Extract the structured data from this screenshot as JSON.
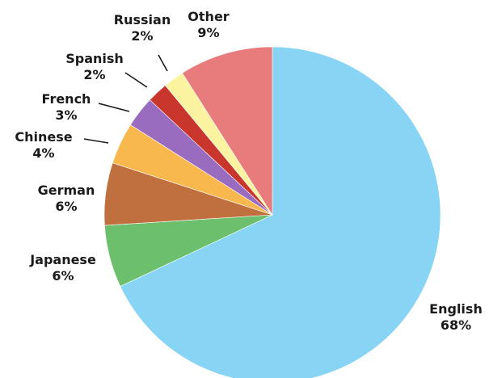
{
  "chart_data": {
    "type": "pie",
    "slices": [
      {
        "label": "English",
        "value": 68,
        "pct_label": "68%",
        "color": "#87d4f5"
      },
      {
        "label": "Japanese",
        "value": 6,
        "pct_label": "6%",
        "color": "#6cbf6c"
      },
      {
        "label": "German",
        "value": 6,
        "pct_label": "6%",
        "color": "#c0703e"
      },
      {
        "label": "Chinese",
        "value": 4,
        "pct_label": "4%",
        "color": "#f8b84e"
      },
      {
        "label": "French",
        "value": 3,
        "pct_label": "3%",
        "color": "#9a6cc0"
      },
      {
        "label": "Spanish",
        "value": 2,
        "pct_label": "2%",
        "color": "#c8362c"
      },
      {
        "label": "Russian",
        "value": 2,
        "pct_label": "2%",
        "color": "#fbf3a0"
      },
      {
        "label": "Other",
        "value": 9,
        "pct_label": "9%",
        "color": "#e87c7c"
      }
    ],
    "start": "12 o'clock",
    "direction": "clockwise",
    "labels": "outside, with leader lines for small slices"
  }
}
